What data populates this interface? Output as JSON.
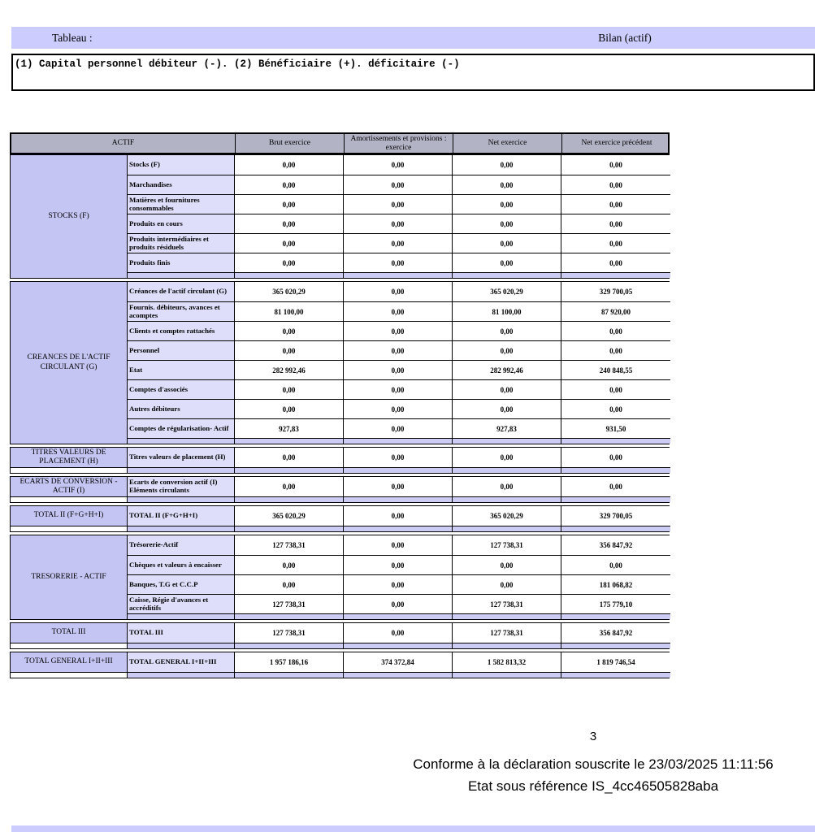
{
  "banner": {
    "label": "Tableau :",
    "title": "Bilan (actif)"
  },
  "note": "(1) Capital personnel débiteur (-). (2) Bénéficiaire (+). déficitaire (-)",
  "table": {
    "headers": [
      "ACTIF",
      "Brut exercice",
      "Amortissements et provisions : exercice",
      "Net exercice",
      "Net exercice précédent"
    ],
    "groups": [
      {
        "category": "STOCKS (F)",
        "rows": [
          {
            "label": "Stocks (F)",
            "values": [
              "0,00",
              "0,00",
              "0,00",
              "0,00"
            ]
          },
          {
            "label": "Marchandises",
            "values": [
              "0,00",
              "0,00",
              "0,00",
              "0,00"
            ]
          },
          {
            "label": "Matières et fournitures consommables",
            "values": [
              "0,00",
              "0,00",
              "0,00",
              "0,00"
            ]
          },
          {
            "label": "Produits en cours",
            "values": [
              "0,00",
              "0,00",
              "0,00",
              "0,00"
            ]
          },
          {
            "label": "Produits intermédiaires et produits résiduels",
            "values": [
              "0,00",
              "0,00",
              "0,00",
              "0,00"
            ]
          },
          {
            "label": "Produits finis",
            "values": [
              "0,00",
              "0,00",
              "0,00",
              "0,00"
            ]
          }
        ]
      },
      {
        "category": "CREANCES DE L'ACTIF CIRCULANT (G)",
        "rows": [
          {
            "label": "Créances de l'actif circulant (G)",
            "values": [
              "365 020,29",
              "0,00",
              "365 020,29",
              "329 700,05"
            ]
          },
          {
            "label": "Fournis. débiteurs, avances et acomptes",
            "values": [
              "81 100,00",
              "0,00",
              "81 100,00",
              "87 920,00"
            ]
          },
          {
            "label": "Clients et comptes rattachés",
            "values": [
              "0,00",
              "0,00",
              "0,00",
              "0,00"
            ]
          },
          {
            "label": "Personnel",
            "values": [
              "0,00",
              "0,00",
              "0,00",
              "0,00"
            ]
          },
          {
            "label": "Etat",
            "values": [
              "282 992,46",
              "0,00",
              "282 992,46",
              "240 848,55"
            ]
          },
          {
            "label": "Comptes d'associés",
            "values": [
              "0,00",
              "0,00",
              "0,00",
              "0,00"
            ]
          },
          {
            "label": "Autres débiteurs",
            "values": [
              "0,00",
              "0,00",
              "0,00",
              "0,00"
            ]
          },
          {
            "label": "Comptes de régularisation- Actif",
            "values": [
              "927,83",
              "0,00",
              "927,83",
              "931,50"
            ]
          }
        ]
      },
      {
        "category": "TITRES VALEURS DE PLACEMENT (H)",
        "rows": [
          {
            "label": "Titres valeurs de placement (H)",
            "values": [
              "0,00",
              "0,00",
              "0,00",
              "0,00"
            ]
          }
        ]
      },
      {
        "category": "ECARTS DE CONVERSION - ACTIF (I)",
        "rows": [
          {
            "label": "Ecarts de conversion  actif (I) Eléments circulants",
            "values": [
              "0,00",
              "0,00",
              "0,00",
              "0,00"
            ]
          }
        ]
      },
      {
        "category": "TOTAL II (F+G+H+I)",
        "rows": [
          {
            "label": "TOTAL II (F+G+H+I)",
            "values": [
              "365 020,29",
              "0,00",
              "365 020,29",
              "329 700,05"
            ]
          }
        ]
      },
      {
        "category": "TRESORERIE - ACTIF",
        "rows": [
          {
            "label": "Trésorerie-Actif",
            "values": [
              "127 738,31",
              "0,00",
              "127 738,31",
              "356 847,92"
            ]
          },
          {
            "label": "Chèques et valeurs à encaisser",
            "values": [
              "0,00",
              "0,00",
              "0,00",
              "0,00"
            ]
          },
          {
            "label": "Banques, T.G et C.C.P",
            "values": [
              "0,00",
              "0,00",
              "0,00",
              "181 068,82"
            ]
          },
          {
            "label": "Caisse, Régie d'avances et accréditifs",
            "values": [
              "127 738,31",
              "0,00",
              "127 738,31",
              "175 779,10"
            ]
          }
        ]
      },
      {
        "category": "TOTAL III",
        "rows": [
          {
            "label": "TOTAL III",
            "values": [
              "127 738,31",
              "0,00",
              "127 738,31",
              "356 847,92"
            ]
          }
        ]
      },
      {
        "category": "TOTAL GENERAL I+II+III",
        "rows": [
          {
            "label": "TOTAL GENERAL I+II+III",
            "values": [
              "1 957 186,16",
              "374 372,84",
              "1 582 813,32",
              "1 819 746,54"
            ]
          }
        ]
      }
    ]
  },
  "footer": {
    "page_number": "3",
    "conformity": "Conforme à la déclaration souscrite le 23/03/2025 11:11:56",
    "reference": "Etat sous référence IS_4cc46505828aba"
  },
  "colors": {
    "banner_bg": "#ccccff",
    "header_bg": "#b3b3c6",
    "category_bg": "#c5c5f3",
    "label_bg": "#dedefa",
    "spacer_bg": "#ccccf5",
    "border": "#000000"
  }
}
